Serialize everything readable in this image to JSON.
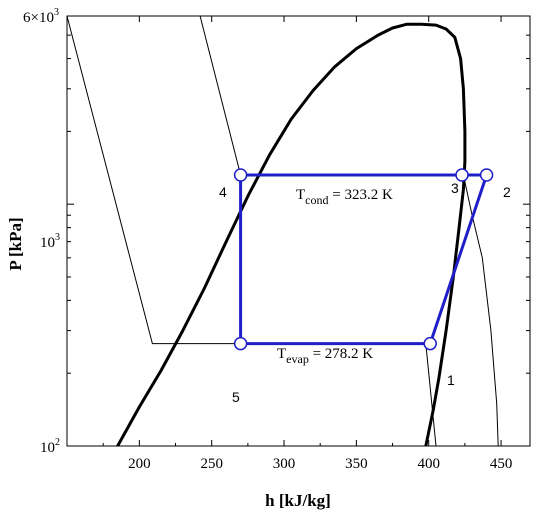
{
  "chart_data": {
    "type": "line",
    "title": "",
    "xlabel": "h [kJ/kg]",
    "ylabel": "P [kPa]",
    "xlim": [
      150,
      470
    ],
    "ylim": [
      100,
      6000
    ],
    "yscale": "log",
    "x_ticks": [
      200,
      250,
      300,
      350,
      400,
      450
    ],
    "x_tick_labels": [
      "200",
      "250",
      "300",
      "350",
      "400",
      "450"
    ],
    "y_ticks": [
      100,
      1000,
      6000
    ],
    "y_tick_labels": [
      {
        "mantissa": "10",
        "exp": "2"
      },
      {
        "mantissa": "10",
        "exp": "3"
      },
      {
        "mantissa": "6×10",
        "exp": "3"
      }
    ],
    "grid": false,
    "series": [
      {
        "role": "saturation-dome",
        "color": "#000000",
        "points": [
          [
            185,
            100
          ],
          [
            200,
            145
          ],
          [
            215,
            205
          ],
          [
            230,
            300
          ],
          [
            245,
            450
          ],
          [
            260,
            700
          ],
          [
            275,
            1080
          ],
          [
            290,
            1600
          ],
          [
            305,
            2250
          ],
          [
            320,
            2950
          ],
          [
            335,
            3700
          ],
          [
            350,
            4400
          ],
          [
            365,
            5000
          ],
          [
            375,
            5350
          ],
          [
            385,
            5550
          ],
          [
            395,
            5550
          ],
          [
            405,
            5500
          ],
          [
            412,
            5300
          ],
          [
            418,
            4900
          ],
          [
            422,
            4000
          ],
          [
            424,
            3000
          ],
          [
            425,
            2000
          ],
          [
            425,
            1500
          ],
          [
            424,
            1150
          ],
          [
            421,
            800
          ],
          [
            417,
            500
          ],
          [
            412,
            300
          ],
          [
            407,
            190
          ],
          [
            403,
            140
          ],
          [
            398,
            100
          ]
        ]
      },
      {
        "role": "isotherm-low",
        "color": "#000000",
        "points": [
          [
            150,
            6000
          ],
          [
            209,
            265
          ],
          [
            398,
            265
          ],
          [
            405,
            100
          ]
        ]
      },
      {
        "role": "isotherm-high",
        "color": "#000000",
        "points": [
          [
            242,
            6000
          ],
          [
            270,
            1320
          ],
          [
            424,
            1320
          ],
          [
            430,
            900
          ],
          [
            437,
            600
          ],
          [
            443,
            300
          ],
          [
            447,
            150
          ],
          [
            448,
            100
          ]
        ]
      },
      {
        "role": "refrigeration-cycle",
        "color": "#1f1fc8",
        "points": [
          [
            270,
            1320
          ],
          [
            423,
            1320
          ],
          [
            440,
            1320
          ],
          [
            401,
            265
          ],
          [
            270,
            265
          ],
          [
            270,
            1320
          ]
        ]
      }
    ],
    "state_points": [
      {
        "label": "1",
        "h": 401,
        "P": 265
      },
      {
        "label": "2",
        "h": 440,
        "P": 1320
      },
      {
        "label": "3",
        "h": 423,
        "P": 1320
      },
      {
        "label": "4",
        "h": 270,
        "P": 1320
      },
      {
        "label": "5",
        "h": 270,
        "P": 265
      }
    ],
    "annotations": [
      {
        "text_main": "T",
        "text_sub": "cond",
        "text_rest": " = 323.2 K"
      },
      {
        "text_main": "T",
        "text_sub": "evap",
        "text_rest": " = 278.2 K"
      }
    ]
  },
  "colors": {
    "cycle": "#1f1fc8",
    "lines": "#000000",
    "marker_fill": "#ffffff"
  }
}
